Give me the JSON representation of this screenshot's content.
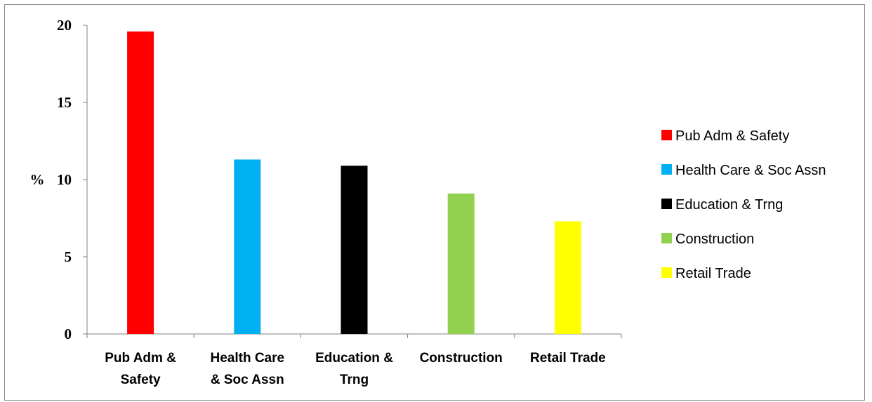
{
  "chart_data": {
    "type": "bar",
    "title": "",
    "xlabel": "",
    "ylabel": "%",
    "ylim": [
      0,
      20
    ],
    "yticks": [
      "0",
      "5",
      "10",
      "15",
      "20"
    ],
    "grid": false,
    "legend_position": "right",
    "categories": [
      "Pub Adm & Safety",
      "Health Care & Soc Assn",
      "Education & Trng",
      "Construction",
      "Retail Trade"
    ],
    "category_label_lines": [
      [
        "Pub Adm &",
        "Safety"
      ],
      [
        "Health Care",
        "& Soc Assn"
      ],
      [
        "Education &",
        "Trng"
      ],
      [
        "Construction"
      ],
      [
        "Retail Trade"
      ]
    ],
    "values": [
      19.6,
      11.3,
      10.9,
      9.1,
      7.3
    ],
    "colors": [
      "#ff0000",
      "#00b0f0",
      "#000000",
      "#92d050",
      "#ffff00"
    ],
    "legend": [
      "Pub Adm & Safety",
      "Health Care & Soc Assn",
      "Education & Trng",
      "Construction",
      "Retail Trade"
    ]
  }
}
